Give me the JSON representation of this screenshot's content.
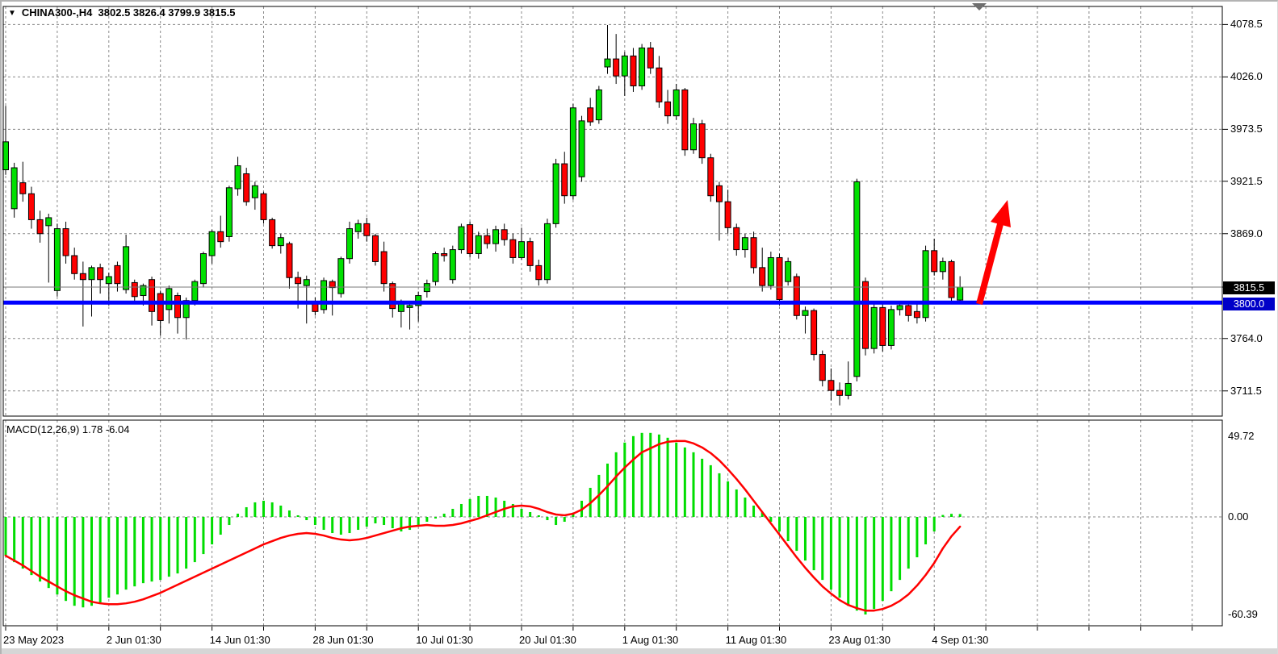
{
  "header": {
    "marker": "▼",
    "title": "CHINA300-,H4  3802.5 3826.4 3799.9 3815.5",
    "symbol": "CHINA300-",
    "timeframe": "H4"
  },
  "macd_panel": {
    "label": "MACD(12,26,9) 1.78 -6.04"
  },
  "price_axis": {
    "ticks": [
      "4078.5",
      "4026.0",
      "3973.5",
      "3921.5",
      "3869.0",
      "3764.0",
      "3711.5"
    ],
    "current_price_badge": "3815.5",
    "line_badge": "3800.0"
  },
  "macd_axis": {
    "ticks": [
      "49.72",
      "0.00",
      "-60.39"
    ]
  },
  "time_axis": {
    "labels": [
      "23 May 2023",
      "2 Jun 01:30",
      "14 Jun 01:30",
      "28 Jun 01:30",
      "10 Jul 01:30",
      "20 Jul 01:30",
      "1 Aug 01:30",
      "11 Aug 01:30",
      "23 Aug 01:30",
      "4 Sep 01:30"
    ]
  },
  "colors": {
    "bull": "#00e000",
    "bear": "#ff0000",
    "wick": "#000000",
    "histogram": "#00dd00",
    "signal_line": "#ff0000",
    "support_line": "#0000ff",
    "support_badge_bg": "#0000c8",
    "price_badge_bg": "#000000",
    "grid": "#8a8a8a",
    "bid_line": "#787878",
    "arrow": "#ff0000",
    "background": "#ffffff",
    "marker_triangle": "#6e6e6e"
  },
  "chart_data": [
    {
      "type": "candlestick",
      "title": "CHINA300-,H4",
      "timeframe": "H4",
      "ohlc_readout": {
        "open": 3802.5,
        "high": 3826.4,
        "low": 3799.9,
        "close": 3815.5
      },
      "ylim": [
        3690,
        4095
      ],
      "price_ticks": [
        4078.5,
        4026.0,
        3973.5,
        3921.5,
        3869.0,
        3764.0,
        3711.5
      ],
      "current_price": 3815.5,
      "horizontal_line": 3800.0,
      "x_labels": [
        "23 May 2023",
        "2 Jun 01:30",
        "14 Jun 01:30",
        "28 Jun 01:30",
        "10 Jul 01:30",
        "20 Jul 01:30",
        "1 Aug 01:30",
        "11 Aug 01:30",
        "23 Aug 01:30",
        "4 Sep 01:30"
      ],
      "candles": [
        [
          3933,
          3997,
          3928,
          3961
        ],
        [
          3894,
          3940,
          3885,
          3935
        ],
        [
          3920,
          3941,
          3901,
          3909
        ],
        [
          3909,
          3916,
          3874,
          3883
        ],
        [
          3883,
          3892,
          3860,
          3869
        ],
        [
          3877,
          3889,
          3820,
          3885
        ],
        [
          3812,
          3879,
          3806,
          3874
        ],
        [
          3874,
          3881,
          3839,
          3847
        ],
        [
          3847,
          3855,
          3823,
          3829
        ],
        [
          3829,
          3841,
          3776,
          3823
        ],
        [
          3823,
          3837,
          3786,
          3835
        ],
        [
          3835,
          3839,
          3809,
          3823
        ],
        [
          3819,
          3830,
          3797,
          3826
        ],
        [
          3837,
          3841,
          3811,
          3819
        ],
        [
          3813,
          3868,
          3809,
          3856
        ],
        [
          3820,
          3823,
          3799,
          3806
        ],
        [
          3807,
          3819,
          3797,
          3817
        ],
        [
          3823,
          3826,
          3777,
          3791
        ],
        [
          3809,
          3812,
          3767,
          3782
        ],
        [
          3793,
          3817,
          3779,
          3814
        ],
        [
          3807,
          3810,
          3769,
          3785
        ],
        [
          3785,
          3805,
          3763,
          3802
        ],
        [
          3802,
          3823,
          3797,
          3821
        ],
        [
          3819,
          3851,
          3815,
          3849
        ],
        [
          3847,
          3873,
          3839,
          3871
        ],
        [
          3871,
          3887,
          3855,
          3861
        ],
        [
          3866,
          3917,
          3861,
          3915
        ],
        [
          3914,
          3946,
          3907,
          3937
        ],
        [
          3929,
          3935,
          3897,
          3901
        ],
        [
          3905,
          3921,
          3893,
          3917
        ],
        [
          3909,
          3911,
          3879,
          3883
        ],
        [
          3883,
          3885,
          3854,
          3857
        ],
        [
          3857,
          3869,
          3849,
          3865
        ],
        [
          3859,
          3861,
          3814,
          3825
        ],
        [
          3825,
          3831,
          3794,
          3819
        ],
        [
          3817,
          3827,
          3779,
          3823
        ],
        [
          3799,
          3805,
          3787,
          3791
        ],
        [
          3793,
          3825,
          3789,
          3822
        ],
        [
          3821,
          3823,
          3787,
          3815
        ],
        [
          3809,
          3846,
          3805,
          3844
        ],
        [
          3844,
          3881,
          3839,
          3874
        ],
        [
          3871,
          3883,
          3864,
          3879
        ],
        [
          3879,
          3885,
          3861,
          3867
        ],
        [
          3867,
          3869,
          3837,
          3841
        ],
        [
          3851,
          3861,
          3811,
          3819
        ],
        [
          3819,
          3821,
          3785,
          3794
        ],
        [
          3791,
          3803,
          3775,
          3799
        ],
        [
          3795,
          3801,
          3773,
          3797
        ],
        [
          3797,
          3811,
          3781,
          3807
        ],
        [
          3811,
          3823,
          3805,
          3819
        ],
        [
          3821,
          3851,
          3817,
          3849
        ],
        [
          3849,
          3855,
          3841,
          3847
        ],
        [
          3823,
          3857,
          3819,
          3853
        ],
        [
          3853,
          3879,
          3849,
          3876
        ],
        [
          3878,
          3881,
          3845,
          3849
        ],
        [
          3849,
          3871,
          3844,
          3867
        ],
        [
          3867,
          3874,
          3854,
          3859
        ],
        [
          3859,
          3877,
          3851,
          3873
        ],
        [
          3873,
          3879,
          3857,
          3863
        ],
        [
          3863,
          3869,
          3839,
          3845
        ],
        [
          3845,
          3875,
          3843,
          3861
        ],
        [
          3861,
          3865,
          3831,
          3837
        ],
        [
          3837,
          3843,
          3817,
          3823
        ],
        [
          3823,
          3884,
          3819,
          3879
        ],
        [
          3879,
          3944,
          3875,
          3939
        ],
        [
          3939,
          3951,
          3899,
          3907
        ],
        [
          3907,
          3999,
          3903,
          3995
        ],
        [
          3926,
          3987,
          3921,
          3982
        ],
        [
          3995,
          4005,
          3977,
          3981
        ],
        [
          3983,
          4017,
          3979,
          4013
        ],
        [
          4036,
          4078,
          4029,
          4044
        ],
        [
          4044,
          4069,
          4019,
          4027
        ],
        [
          4027,
          4051,
          4007,
          4047
        ],
        [
          4047,
          4055,
          4011,
          4017
        ],
        [
          4017,
          4059,
          4013,
          4055
        ],
        [
          4055,
          4061,
          4029,
          4035
        ],
        [
          4035,
          4047,
          3995,
          4001
        ],
        [
          4001,
          4013,
          3979,
          3987
        ],
        [
          3987,
          4019,
          3983,
          4013
        ],
        [
          4013,
          4015,
          3947,
          3953
        ],
        [
          3953,
          3985,
          3949,
          3979
        ],
        [
          3979,
          3983,
          3939,
          3945
        ],
        [
          3945,
          3949,
          3901,
          3907
        ],
        [
          3917,
          3921,
          3862,
          3901
        ],
        [
          3901,
          3913,
          3869,
          3875
        ],
        [
          3875,
          3879,
          3847,
          3853
        ],
        [
          3853,
          3869,
          3845,
          3865
        ],
        [
          3865,
          3871,
          3829,
          3835
        ],
        [
          3835,
          3855,
          3811,
          3817
        ],
        [
          3817,
          3851,
          3813,
          3845
        ],
        [
          3845,
          3849,
          3797,
          3803
        ],
        [
          3821,
          3845,
          3817,
          3841
        ],
        [
          3826,
          3829,
          3783,
          3787
        ],
        [
          3787,
          3796,
          3769,
          3792
        ],
        [
          3792,
          3794,
          3742,
          3748
        ],
        [
          3748,
          3752,
          3716,
          3722
        ],
        [
          3722,
          3734,
          3702,
          3712
        ],
        [
          3712,
          3720,
          3697,
          3707
        ],
        [
          3707,
          3741,
          3703,
          3719
        ],
        [
          3726,
          3924,
          3721,
          3921
        ],
        [
          3821,
          3825,
          3747,
          3754
        ],
        [
          3754,
          3801,
          3749,
          3795
        ],
        [
          3795,
          3799,
          3751,
          3757
        ],
        [
          3757,
          3797,
          3753,
          3793
        ],
        [
          3793,
          3801,
          3787,
          3797
        ],
        [
          3797,
          3799,
          3781,
          3787
        ],
        [
          3791,
          3799,
          3779,
          3785
        ],
        [
          3785,
          3857,
          3781,
          3852
        ],
        [
          3852,
          3864,
          3827,
          3831
        ],
        [
          3831,
          3845,
          3823,
          3841
        ],
        [
          3841,
          3843,
          3799,
          3805
        ],
        [
          3802.5,
          3826.4,
          3799.9,
          3815.5
        ]
      ],
      "annotations": [
        {
          "type": "up-arrow",
          "color": "#ff0000",
          "tail_xy": [
            1213,
            377
          ],
          "head_xy": [
            1248,
            248
          ],
          "meaning": "bullish breakout from 3800 support"
        },
        {
          "type": "down-triangle-marker",
          "color": "#6e6e6e",
          "xy": [
            1213,
            8
          ]
        }
      ]
    },
    {
      "type": "macd",
      "label": "MACD(12,26,9)",
      "params": [
        12,
        26,
        9
      ],
      "readout": {
        "macd": 1.78,
        "signal": -6.04
      },
      "ylim": [
        -67,
        60
      ],
      "ticks": [
        49.72,
        0.0,
        -60.39
      ],
      "histogram": [
        -24,
        -28,
        -32,
        -36,
        -40,
        -44,
        -48,
        -52,
        -55,
        -56,
        -55,
        -53,
        -50,
        -48,
        -45,
        -43,
        -41,
        -40,
        -39,
        -37,
        -35,
        -32,
        -28,
        -23,
        -17,
        -11,
        -5,
        2,
        6,
        9,
        10,
        9,
        7,
        4,
        1,
        -2,
        -5,
        -8,
        -10,
        -11,
        -10,
        -8,
        -6,
        -4,
        -5,
        -7,
        -9,
        -8,
        -6,
        -3,
        -1,
        2,
        5,
        8,
        11,
        13,
        13,
        12,
        10,
        8,
        5,
        3,
        1,
        -2,
        -5,
        -3,
        2,
        10,
        18,
        26,
        33,
        40,
        46,
        50,
        52,
        52,
        51,
        49,
        46,
        43,
        40,
        36,
        32,
        27,
        22,
        17,
        12,
        7,
        3,
        -3,
        -9,
        -15,
        -21,
        -27,
        -33,
        -39,
        -45,
        -50,
        -55,
        -58,
        -60.39,
        -57,
        -52,
        -46,
        -39,
        -32,
        -25,
        -17,
        -9,
        1.2,
        1.9,
        1.78
      ],
      "signal": [
        -24,
        -27,
        -30,
        -33.5,
        -37,
        -40,
        -43,
        -46,
        -48.5,
        -50.5,
        -52.5,
        -53.5,
        -54,
        -54,
        -53.5,
        -52.5,
        -51,
        -49,
        -47,
        -44.5,
        -42,
        -39.5,
        -37,
        -34.5,
        -32,
        -29.5,
        -27,
        -24.5,
        -22,
        -19.5,
        -17,
        -15,
        -13,
        -11.5,
        -10.5,
        -10,
        -10.5,
        -11.5,
        -13,
        -14,
        -14.5,
        -14,
        -13,
        -11.5,
        -10,
        -8.5,
        -7,
        -6,
        -5.5,
        -5,
        -5.5,
        -5.5,
        -5,
        -4,
        -2.5,
        -1,
        1,
        3,
        5,
        6.5,
        7,
        6.5,
        5,
        3,
        1.5,
        1,
        2,
        4.5,
        8.5,
        13.5,
        19,
        25,
        30.5,
        35.5,
        40,
        42.5,
        45,
        46.5,
        47,
        47,
        45.5,
        43,
        39.5,
        35,
        29.5,
        23.5,
        17,
        10,
        3,
        -4,
        -11,
        -18,
        -25,
        -31.5,
        -37.5,
        -43,
        -47.5,
        -51.5,
        -54.5,
        -56.5,
        -58,
        -58,
        -57,
        -55,
        -52,
        -48,
        -42.5,
        -36,
        -28.5,
        -19.5,
        -12,
        -6.04
      ]
    }
  ]
}
